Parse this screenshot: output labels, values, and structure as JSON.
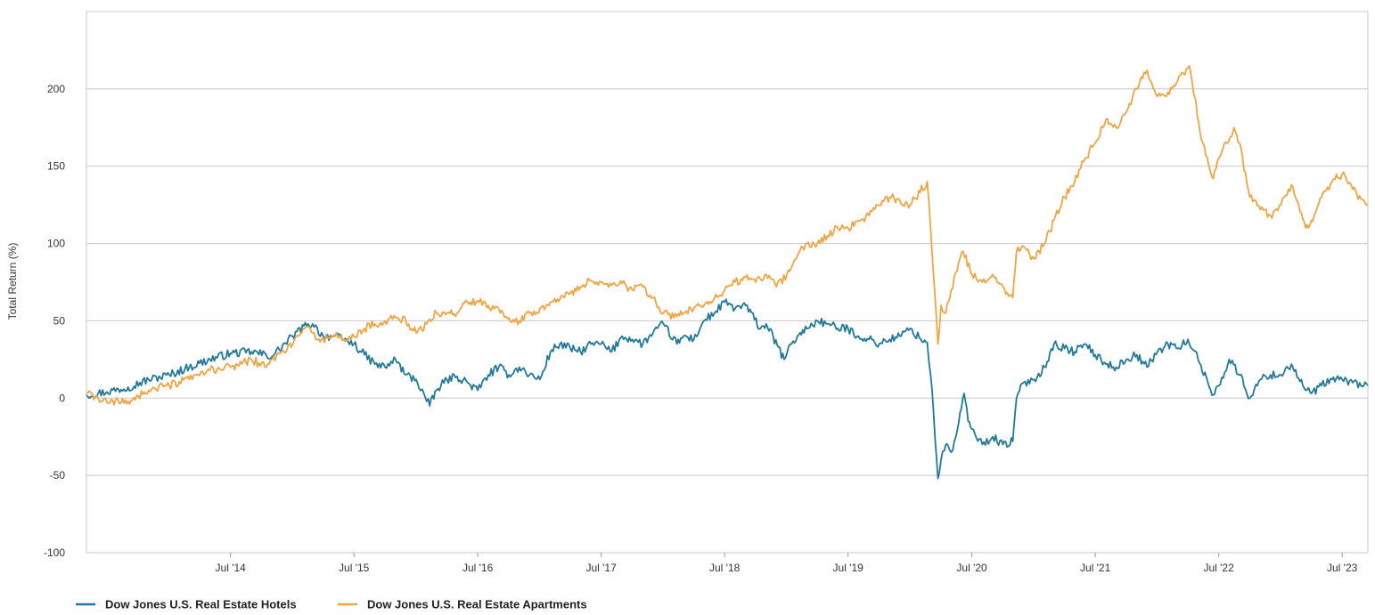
{
  "chart_data": {
    "type": "line",
    "ylabel": "Total Return (%)",
    "xlabel": "",
    "ylim": [
      -100,
      250
    ],
    "yticks": [
      -100,
      -50,
      0,
      50,
      100,
      150,
      200
    ],
    "ytick_labels": [
      "-100",
      "-50",
      "0",
      "50",
      "100",
      "150",
      "200"
    ],
    "xlim": [
      "2013-05-01",
      "2023-09-15"
    ],
    "xticks": [
      "2014-07-01",
      "2015-07-01",
      "2016-07-01",
      "2017-07-01",
      "2018-07-01",
      "2019-07-01",
      "2020-07-01",
      "2021-07-01",
      "2022-07-01",
      "2023-07-01"
    ],
    "xtick_labels": [
      "Jul '14",
      "Jul '15",
      "Jul '16",
      "Jul '17",
      "Jul '18",
      "Jul '19",
      "Jul '20",
      "Jul '21",
      "Jul '22",
      "Jul '23"
    ],
    "grid": "horizontal",
    "legend_position": "bottom-left",
    "series": [
      {
        "name": "Dow Jones U.S. Real Estate Hotels",
        "color": "#21799a",
        "points": [
          [
            "2013-05-01",
            2
          ],
          [
            "2013-07-01",
            4
          ],
          [
            "2013-09-01",
            7
          ],
          [
            "2013-11-01",
            12
          ],
          [
            "2014-01-01",
            15
          ],
          [
            "2014-03-01",
            20
          ],
          [
            "2014-05-01",
            25
          ],
          [
            "2014-07-01",
            29
          ],
          [
            "2014-09-01",
            30
          ],
          [
            "2014-11-01",
            27
          ],
          [
            "2015-01-01",
            40
          ],
          [
            "2015-02-15",
            48
          ],
          [
            "2015-03-01",
            48
          ],
          [
            "2015-04-01",
            40
          ],
          [
            "2015-05-01",
            40
          ],
          [
            "2015-06-01",
            38
          ],
          [
            "2015-07-01",
            35
          ],
          [
            "2015-08-01",
            28
          ],
          [
            "2015-09-01",
            22
          ],
          [
            "2015-10-01",
            20
          ],
          [
            "2015-11-01",
            25
          ],
          [
            "2015-12-01",
            15
          ],
          [
            "2016-01-01",
            12
          ],
          [
            "2016-02-10",
            -5
          ],
          [
            "2016-03-01",
            5
          ],
          [
            "2016-04-01",
            12
          ],
          [
            "2016-05-01",
            14
          ],
          [
            "2016-06-01",
            10
          ],
          [
            "2016-07-01",
            5
          ],
          [
            "2016-08-01",
            15
          ],
          [
            "2016-09-01",
            20
          ],
          [
            "2016-10-01",
            15
          ],
          [
            "2016-11-01",
            20
          ],
          [
            "2016-12-01",
            15
          ],
          [
            "2017-01-01",
            12
          ],
          [
            "2017-02-01",
            30
          ],
          [
            "2017-03-01",
            35
          ],
          [
            "2017-04-01",
            32
          ],
          [
            "2017-05-01",
            30
          ],
          [
            "2017-06-01",
            35
          ],
          [
            "2017-07-01",
            35
          ],
          [
            "2017-08-01",
            30
          ],
          [
            "2017-09-01",
            40
          ],
          [
            "2017-10-01",
            38
          ],
          [
            "2017-11-01",
            35
          ],
          [
            "2017-12-01",
            42
          ],
          [
            "2018-01-01",
            48
          ],
          [
            "2018-02-10",
            35
          ],
          [
            "2018-03-01",
            40
          ],
          [
            "2018-04-01",
            38
          ],
          [
            "2018-05-01",
            50
          ],
          [
            "2018-06-01",
            55
          ],
          [
            "2018-07-01",
            62
          ],
          [
            "2018-08-01",
            58
          ],
          [
            "2018-09-01",
            60
          ],
          [
            "2018-10-15",
            45
          ],
          [
            "2018-11-01",
            48
          ],
          [
            "2018-12-24",
            25
          ],
          [
            "2019-01-15",
            35
          ],
          [
            "2019-02-01",
            40
          ],
          [
            "2019-03-01",
            45
          ],
          [
            "2019-04-01",
            50
          ],
          [
            "2019-05-01",
            48
          ],
          [
            "2019-06-01",
            45
          ],
          [
            "2019-07-01",
            45
          ],
          [
            "2019-08-01",
            40
          ],
          [
            "2019-09-01",
            38
          ],
          [
            "2019-10-01",
            35
          ],
          [
            "2019-11-01",
            38
          ],
          [
            "2019-12-01",
            40
          ],
          [
            "2020-01-01",
            45
          ],
          [
            "2020-02-01",
            38
          ],
          [
            "2020-02-20",
            36
          ],
          [
            "2020-03-01",
            15
          ],
          [
            "2020-03-10",
            -10
          ],
          [
            "2020-03-23",
            -52
          ],
          [
            "2020-04-01",
            -40
          ],
          [
            "2020-04-15",
            -30
          ],
          [
            "2020-05-01",
            -35
          ],
          [
            "2020-05-15",
            -25
          ],
          [
            "2020-06-08",
            3
          ],
          [
            "2020-06-20",
            -15
          ],
          [
            "2020-07-01",
            -20
          ],
          [
            "2020-08-01",
            -30
          ],
          [
            "2020-09-01",
            -25
          ],
          [
            "2020-10-01",
            -30
          ],
          [
            "2020-10-30",
            -28
          ],
          [
            "2020-11-10",
            0
          ],
          [
            "2020-12-01",
            10
          ],
          [
            "2021-01-01",
            12
          ],
          [
            "2021-02-01",
            20
          ],
          [
            "2021-03-01",
            35
          ],
          [
            "2021-04-01",
            32
          ],
          [
            "2021-05-01",
            30
          ],
          [
            "2021-06-01",
            35
          ],
          [
            "2021-07-01",
            28
          ],
          [
            "2021-08-01",
            22
          ],
          [
            "2021-09-01",
            20
          ],
          [
            "2021-10-01",
            25
          ],
          [
            "2021-11-01",
            28
          ],
          [
            "2021-12-01",
            20
          ],
          [
            "2022-01-01",
            30
          ],
          [
            "2022-02-01",
            35
          ],
          [
            "2022-03-01",
            32
          ],
          [
            "2022-04-01",
            38
          ],
          [
            "2022-05-01",
            25
          ],
          [
            "2022-06-15",
            2
          ],
          [
            "2022-07-01",
            8
          ],
          [
            "2022-08-01",
            25
          ],
          [
            "2022-09-01",
            15
          ],
          [
            "2022-10-01",
            0
          ],
          [
            "2022-11-01",
            12
          ],
          [
            "2022-12-01",
            15
          ],
          [
            "2023-01-01",
            15
          ],
          [
            "2023-02-01",
            22
          ],
          [
            "2023-03-15",
            5
          ],
          [
            "2023-04-01",
            3
          ],
          [
            "2023-05-01",
            8
          ],
          [
            "2023-06-01",
            12
          ],
          [
            "2023-07-01",
            12
          ],
          [
            "2023-08-01",
            10
          ],
          [
            "2023-09-15",
            8
          ]
        ]
      },
      {
        "name": "Dow Jones U.S. Real Estate Apartments",
        "color": "#f0a443",
        "points": [
          [
            "2013-05-01",
            3
          ],
          [
            "2013-07-01",
            -3
          ],
          [
            "2013-09-01",
            -2
          ],
          [
            "2013-11-01",
            5
          ],
          [
            "2014-01-01",
            8
          ],
          [
            "2014-03-01",
            12
          ],
          [
            "2014-05-01",
            18
          ],
          [
            "2014-07-01",
            20
          ],
          [
            "2014-09-01",
            25
          ],
          [
            "2014-10-15",
            20
          ],
          [
            "2014-11-01",
            25
          ],
          [
            "2015-01-01",
            35
          ],
          [
            "2015-02-01",
            45
          ],
          [
            "2015-03-01",
            42
          ],
          [
            "2015-04-01",
            38
          ],
          [
            "2015-05-01",
            40
          ],
          [
            "2015-06-01",
            38
          ],
          [
            "2015-07-01",
            40
          ],
          [
            "2015-08-01",
            45
          ],
          [
            "2015-09-01",
            48
          ],
          [
            "2015-10-01",
            50
          ],
          [
            "2015-11-01",
            52
          ],
          [
            "2015-12-01",
            50
          ],
          [
            "2016-01-01",
            42
          ],
          [
            "2016-02-01",
            48
          ],
          [
            "2016-03-01",
            55
          ],
          [
            "2016-04-01",
            55
          ],
          [
            "2016-05-01",
            55
          ],
          [
            "2016-06-01",
            62
          ],
          [
            "2016-07-01",
            63
          ],
          [
            "2016-08-01",
            60
          ],
          [
            "2016-09-01",
            58
          ],
          [
            "2016-10-01",
            52
          ],
          [
            "2016-11-01",
            50
          ],
          [
            "2016-12-01",
            55
          ],
          [
            "2017-01-01",
            58
          ],
          [
            "2017-02-01",
            62
          ],
          [
            "2017-03-01",
            64
          ],
          [
            "2017-04-01",
            68
          ],
          [
            "2017-05-01",
            72
          ],
          [
            "2017-06-01",
            76
          ],
          [
            "2017-07-01",
            75
          ],
          [
            "2017-08-01",
            73
          ],
          [
            "2017-09-01",
            74
          ],
          [
            "2017-10-01",
            70
          ],
          [
            "2017-11-01",
            72
          ],
          [
            "2017-12-01",
            65
          ],
          [
            "2018-01-01",
            55
          ],
          [
            "2018-02-01",
            52
          ],
          [
            "2018-03-01",
            55
          ],
          [
            "2018-04-01",
            58
          ],
          [
            "2018-05-01",
            60
          ],
          [
            "2018-06-01",
            65
          ],
          [
            "2018-07-01",
            70
          ],
          [
            "2018-08-01",
            75
          ],
          [
            "2018-09-01",
            78
          ],
          [
            "2018-10-01",
            75
          ],
          [
            "2018-11-01",
            80
          ],
          [
            "2018-12-01",
            72
          ],
          [
            "2019-01-01",
            80
          ],
          [
            "2019-02-01",
            92
          ],
          [
            "2019-03-01",
            100
          ],
          [
            "2019-04-01",
            100
          ],
          [
            "2019-05-01",
            105
          ],
          [
            "2019-06-01",
            110
          ],
          [
            "2019-07-01",
            110
          ],
          [
            "2019-08-01",
            115
          ],
          [
            "2019-09-01",
            118
          ],
          [
            "2019-10-01",
            125
          ],
          [
            "2019-11-01",
            130
          ],
          [
            "2019-12-01",
            128
          ],
          [
            "2020-01-01",
            125
          ],
          [
            "2020-02-20",
            140
          ],
          [
            "2020-03-01",
            110
          ],
          [
            "2020-03-23",
            35
          ],
          [
            "2020-04-01",
            60
          ],
          [
            "2020-04-15",
            55
          ],
          [
            "2020-05-01",
            70
          ],
          [
            "2020-06-05",
            95
          ],
          [
            "2020-07-01",
            80
          ],
          [
            "2020-08-01",
            75
          ],
          [
            "2020-09-01",
            80
          ],
          [
            "2020-10-01",
            72
          ],
          [
            "2020-10-30",
            65
          ],
          [
            "2020-11-10",
            95
          ],
          [
            "2020-12-01",
            98
          ],
          [
            "2021-01-01",
            90
          ],
          [
            "2021-02-01",
            100
          ],
          [
            "2021-03-01",
            115
          ],
          [
            "2021-04-01",
            130
          ],
          [
            "2021-05-01",
            140
          ],
          [
            "2021-06-01",
            155
          ],
          [
            "2021-07-01",
            165
          ],
          [
            "2021-08-01",
            180
          ],
          [
            "2021-09-01",
            175
          ],
          [
            "2021-10-01",
            185
          ],
          [
            "2021-11-01",
            200
          ],
          [
            "2021-12-01",
            212
          ],
          [
            "2022-01-01",
            195
          ],
          [
            "2022-02-01",
            198
          ],
          [
            "2022-03-01",
            205
          ],
          [
            "2022-04-05",
            215
          ],
          [
            "2022-04-20",
            195
          ],
          [
            "2022-05-15",
            165
          ],
          [
            "2022-06-15",
            142
          ],
          [
            "2022-07-01",
            155
          ],
          [
            "2022-08-15",
            175
          ],
          [
            "2022-09-01",
            165
          ],
          [
            "2022-10-01",
            130
          ],
          [
            "2022-11-01",
            122
          ],
          [
            "2022-12-01",
            118
          ],
          [
            "2023-01-01",
            125
          ],
          [
            "2023-02-01",
            138
          ],
          [
            "2023-03-15",
            110
          ],
          [
            "2023-04-01",
            115
          ],
          [
            "2023-05-01",
            130
          ],
          [
            "2023-06-01",
            140
          ],
          [
            "2023-07-01",
            145
          ],
          [
            "2023-08-01",
            135
          ],
          [
            "2023-09-15",
            125
          ]
        ]
      }
    ]
  }
}
